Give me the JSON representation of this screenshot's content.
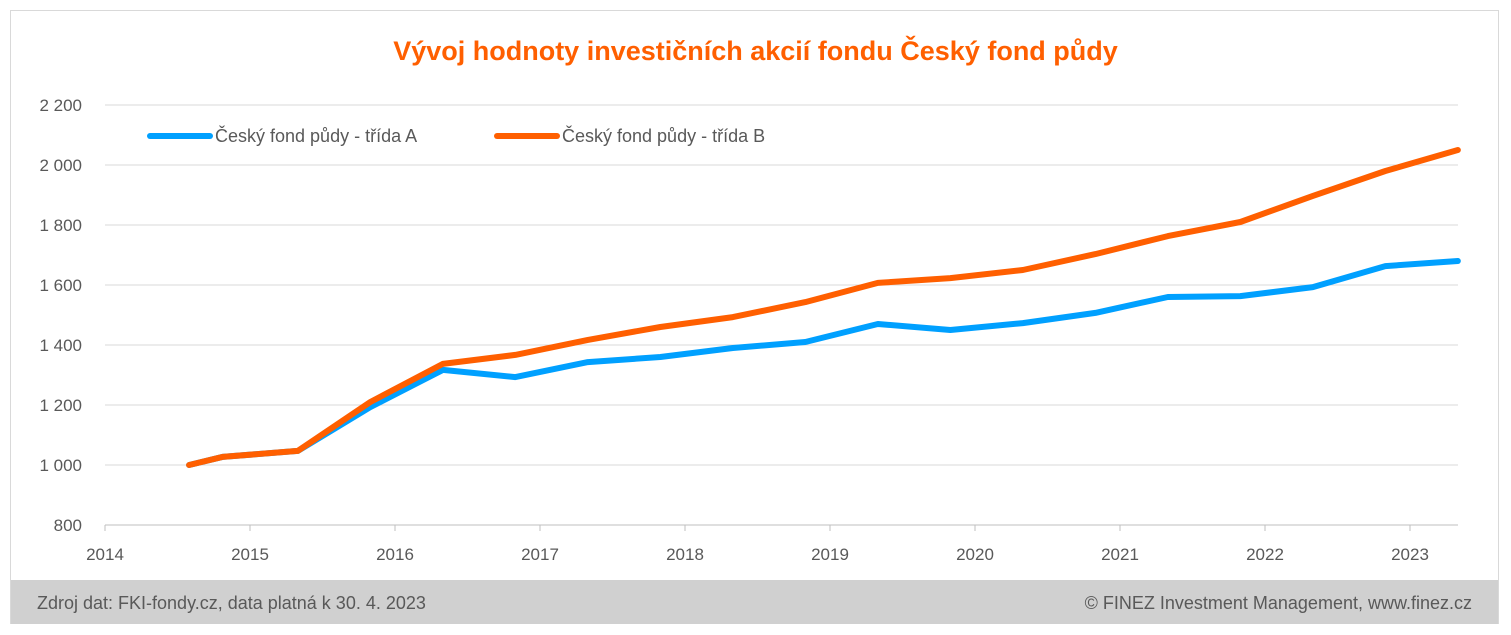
{
  "chart_data": {
    "type": "line",
    "title": "Vývoj hodnoty investičních akcií fondu Český fond půdy",
    "xlabel": "",
    "ylabel": "",
    "xlim": [
      2014,
      2023.33
    ],
    "ylim": [
      800,
      2200
    ],
    "x_ticks": [
      "2014",
      "2015",
      "2016",
      "2017",
      "2018",
      "2019",
      "2020",
      "2021",
      "2022",
      "2023"
    ],
    "y_ticks": [
      {
        "value": 800,
        "label": "800"
      },
      {
        "value": 1000,
        "label": "1 000"
      },
      {
        "value": 1200,
        "label": "1 200"
      },
      {
        "value": 1400,
        "label": "1 400"
      },
      {
        "value": 1600,
        "label": "1 600"
      },
      {
        "value": 1800,
        "label": "1 800"
      },
      {
        "value": 2000,
        "label": "2 000"
      },
      {
        "value": 2200,
        "label": "2 200"
      }
    ],
    "grid": true,
    "legend_position": "top-left",
    "x": [
      2014.58,
      2014.81,
      2015.33,
      2015.83,
      2016.33,
      2016.83,
      2017.33,
      2017.83,
      2018.33,
      2018.83,
      2019.33,
      2019.83,
      2020.33,
      2020.83,
      2021.33,
      2021.83,
      2022.33,
      2022.83,
      2023.33
    ],
    "series": [
      {
        "name": "Český fond půdy - třída A",
        "color": "#00a0ff",
        "values": [
          1000,
          1027,
          1047,
          1193,
          1317,
          1293,
          1343,
          1360,
          1390,
          1410,
          1470,
          1450,
          1473,
          1507,
          1560,
          1563,
          1593,
          1663,
          1680
        ]
      },
      {
        "name": "Český fond půdy - třída B",
        "color": "#ff5f00",
        "values": [
          1000,
          1027,
          1047,
          1210,
          1337,
          1367,
          1417,
          1460,
          1493,
          1543,
          1607,
          1623,
          1650,
          1703,
          1763,
          1810,
          1897,
          1980,
          2050
        ]
      }
    ]
  },
  "footer": {
    "source": "Zdroj dat: FKI-fondy.cz, data platná k 30. 4. 2023",
    "copyright": "© FINEZ Investment Management, www.finez.cz"
  }
}
